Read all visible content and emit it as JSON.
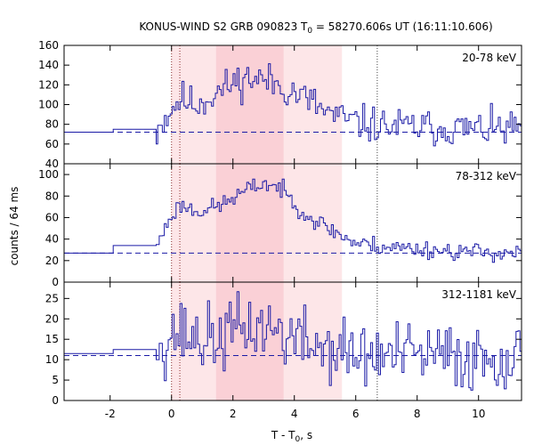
{
  "chart_data": {
    "type": "line",
    "title_parts": {
      "prefix": "KONUS-WIND S2 GRB 090823 T",
      "sub": "0",
      "suffix": " = 58270.606s UT (16:11:10.606)"
    },
    "xlabel_parts": {
      "prefix": "T - T",
      "sub": "0",
      "suffix": ", s"
    },
    "ylabel": "counts / 64 ms",
    "xlim": [
      -3.5,
      11.4
    ],
    "x_ticks": [
      -2,
      0,
      2,
      4,
      6,
      8,
      10
    ],
    "x_tick_labels": [
      "-2",
      "0",
      "2",
      "4",
      "6",
      "8",
      "10"
    ],
    "colors": {
      "series": "#1a1aa6",
      "background_level": "#1a1aa6",
      "marker_lines": "#8b2a2a",
      "end_line": "#444444",
      "light_band": "#fde6e8",
      "dark_band": "#fad0d6"
    },
    "shaded_intervals": [
      {
        "from": 0.0,
        "to": 5.55,
        "shade": "light"
      },
      {
        "from": 1.45,
        "to": 3.65,
        "shade": "dark"
      }
    ],
    "vertical_lines": [
      {
        "x": 0.0,
        "style": "marker_lines"
      },
      {
        "x": 0.27,
        "style": "marker_lines"
      },
      {
        "x": 6.7,
        "style": "end_line"
      }
    ],
    "panels": [
      {
        "label": "20-78 keV",
        "ylim": [
          40,
          160
        ],
        "y_ticks": [
          40,
          60,
          80,
          100,
          120,
          140,
          160
        ],
        "y_tick_labels": [
          "40",
          "60",
          "80",
          "100",
          "120",
          "140",
          "160"
        ],
        "background": 72,
        "presteps": [
          {
            "x0": -3.5,
            "x1": -1.9,
            "y": 72
          },
          {
            "x0": -1.9,
            "x1": -0.5,
            "y": 75
          },
          {
            "x0": -0.5,
            "x1": -0.45,
            "y": 60
          },
          {
            "x0": -0.45,
            "x1": -0.3,
            "y": 79
          }
        ],
        "keypoints": [
          [
            -0.3,
            82
          ],
          [
            0.0,
            96
          ],
          [
            0.3,
            106
          ],
          [
            0.8,
            100
          ],
          [
            1.5,
            112
          ],
          [
            2.0,
            122
          ],
          [
            2.5,
            127
          ],
          [
            3.0,
            125
          ],
          [
            3.5,
            120
          ],
          [
            4.0,
            112
          ],
          [
            4.5,
            104
          ],
          [
            5.0,
            93
          ],
          [
            5.5,
            86
          ],
          [
            6.0,
            82
          ],
          [
            7.0,
            78
          ],
          [
            8.0,
            77
          ],
          [
            9.0,
            76
          ],
          [
            10.0,
            75
          ],
          [
            11.4,
            75
          ]
        ],
        "noise": 11,
        "seed": 11
      },
      {
        "label": "78-312 keV",
        "ylim": [
          0,
          110
        ],
        "y_ticks": [
          0,
          20,
          40,
          60,
          80,
          100
        ],
        "y_tick_labels": [
          "0",
          "20",
          "40",
          "60",
          "80",
          "100"
        ],
        "background": 27,
        "presteps": [
          {
            "x0": -3.5,
            "x1": -1.9,
            "y": 27
          },
          {
            "x0": -1.9,
            "x1": -0.5,
            "y": 34
          },
          {
            "x0": -0.5,
            "x1": -0.4,
            "y": 35
          },
          {
            "x0": -0.4,
            "x1": -0.3,
            "y": 43
          }
        ],
        "keypoints": [
          [
            -0.3,
            44
          ],
          [
            0.0,
            62
          ],
          [
            0.3,
            72
          ],
          [
            0.8,
            66
          ],
          [
            1.5,
            70
          ],
          [
            2.0,
            78
          ],
          [
            2.5,
            86
          ],
          [
            3.0,
            92
          ],
          [
            3.5,
            88
          ],
          [
            4.0,
            74
          ],
          [
            4.5,
            60
          ],
          [
            5.0,
            52
          ],
          [
            5.5,
            44
          ],
          [
            6.0,
            36
          ],
          [
            7.0,
            33
          ],
          [
            8.0,
            31
          ],
          [
            9.0,
            29
          ],
          [
            10.0,
            28
          ],
          [
            11.4,
            27
          ]
        ],
        "noise": 5,
        "seed": 23
      },
      {
        "label": "312-1181 keV",
        "ylim": [
          0,
          29
        ],
        "y_ticks": [
          0,
          5,
          10,
          15,
          20,
          25
        ],
        "y_tick_labels": [
          "0",
          "5",
          "10",
          "15",
          "20",
          "25"
        ],
        "background": 11,
        "presteps": [
          {
            "x0": -3.5,
            "x1": -1.9,
            "y": 11.5
          },
          {
            "x0": -1.9,
            "x1": -0.5,
            "y": 12.5
          },
          {
            "x0": -0.5,
            "x1": -0.4,
            "y": 10
          },
          {
            "x0": -0.4,
            "x1": -0.3,
            "y": 14
          }
        ],
        "keypoints": [
          [
            -0.3,
            13
          ],
          [
            0.0,
            17
          ],
          [
            0.5,
            16
          ],
          [
            1.0,
            15
          ],
          [
            1.5,
            15
          ],
          [
            2.0,
            17
          ],
          [
            2.5,
            18
          ],
          [
            3.0,
            18
          ],
          [
            3.5,
            17
          ],
          [
            4.0,
            15
          ],
          [
            5.0,
            13
          ],
          [
            6.0,
            11
          ],
          [
            8.0,
            11
          ],
          [
            10.0,
            10.5
          ],
          [
            11.4,
            11
          ]
        ],
        "noise": 5,
        "seed": 37
      }
    ]
  }
}
